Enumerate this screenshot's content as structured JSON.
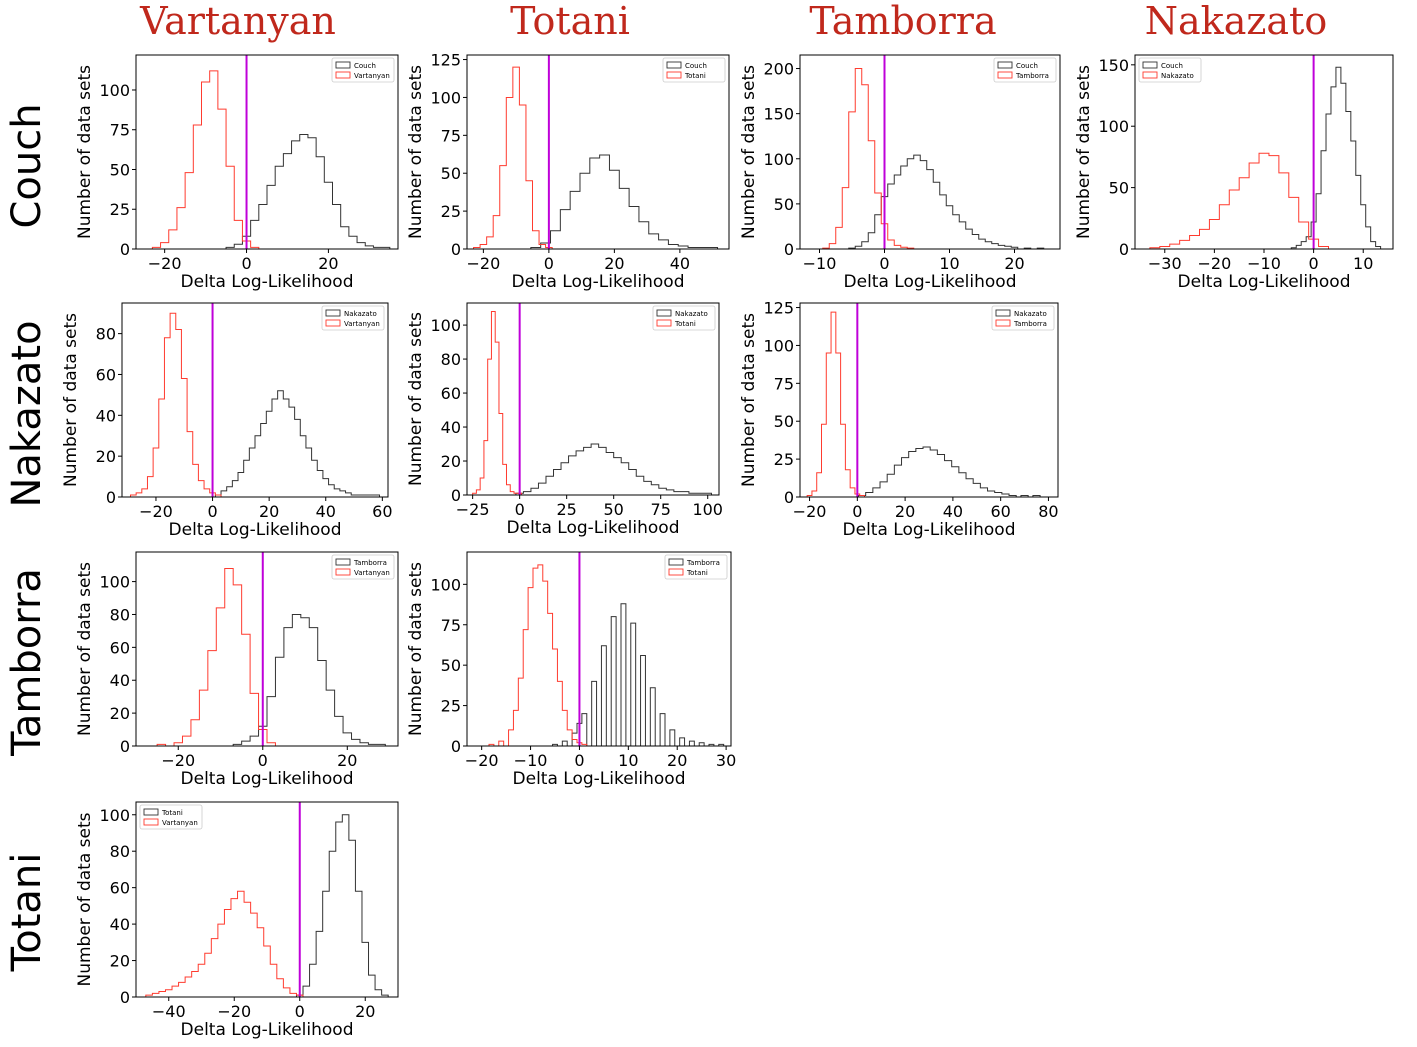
{
  "column_titles": [
    "Vartanyan",
    "Totani",
    "Tamborra",
    "Nakazato"
  ],
  "row_titles": [
    "Couch",
    "Nakazato",
    "Tamborra",
    "Totani"
  ],
  "colors": {
    "reference_series": "#333333",
    "compared_series": "#ff3b2f",
    "zero_line": "#bf00d9",
    "title_accent": "#c0281c"
  },
  "chart_data": [
    {
      "type": "histogram",
      "row": "Couch",
      "column": "Vartanyan",
      "xlabel": "Delta Log-Likelihood",
      "ylabel": "Number of data sets",
      "xlim": [
        -27,
        37
      ],
      "ylim": [
        0,
        122
      ],
      "xticks": [
        -20,
        0,
        20
      ],
      "yticks": [
        0,
        25,
        50,
        75,
        100
      ],
      "vline_x": 0,
      "legend_position": "upper right",
      "series": [
        {
          "name": "Couch",
          "color": "#333333",
          "x": [
            -4,
            -2,
            0,
            2,
            4,
            6,
            8,
            10,
            12,
            14,
            16,
            18,
            20,
            22,
            24,
            26,
            28,
            30,
            32,
            34
          ],
          "y": [
            1,
            3,
            8,
            18,
            28,
            40,
            52,
            60,
            68,
            72,
            70,
            58,
            42,
            28,
            14,
            8,
            4,
            2,
            1,
            1
          ]
        },
        {
          "name": "Vartanyan",
          "color": "#ff3b2f",
          "x": [
            -22,
            -20,
            -18,
            -16,
            -14,
            -12,
            -10,
            -8,
            -6,
            -4,
            -2,
            0,
            2
          ],
          "y": [
            1,
            4,
            12,
            26,
            48,
            78,
            105,
            112,
            88,
            52,
            18,
            5,
            1
          ]
        }
      ]
    },
    {
      "type": "histogram",
      "row": "Couch",
      "column": "Totani",
      "xlabel": "Delta Log-Likelihood",
      "ylabel": "Number of data sets",
      "xlim": [
        -25,
        55
      ],
      "ylim": [
        0,
        128
      ],
      "xticks": [
        -20,
        0,
        20,
        40
      ],
      "yticks": [
        0,
        25,
        50,
        75,
        100,
        125
      ],
      "vline_x": 0,
      "legend_position": "upper right",
      "series": [
        {
          "name": "Couch",
          "color": "#333333",
          "x": [
            -4,
            -1,
            2,
            5,
            8,
            11,
            14,
            17,
            20,
            23,
            26,
            29,
            32,
            35,
            38,
            41,
            44,
            47,
            50
          ],
          "y": [
            1,
            4,
            12,
            26,
            38,
            50,
            60,
            62,
            52,
            40,
            28,
            18,
            10,
            6,
            3,
            2,
            1,
            1,
            1
          ]
        },
        {
          "name": "Totani",
          "color": "#ff3b2f",
          "x": [
            -22,
            -20,
            -18,
            -16,
            -14,
            -12,
            -10,
            -8,
            -6,
            -4,
            -2,
            0
          ],
          "y": [
            1,
            3,
            8,
            22,
            55,
            100,
            120,
            95,
            45,
            12,
            3,
            1
          ]
        }
      ]
    },
    {
      "type": "histogram",
      "row": "Couch",
      "column": "Tamborra",
      "xlabel": "Delta Log-Likelihood",
      "ylabel": "Number of data sets",
      "xlim": [
        -13,
        27
      ],
      "ylim": [
        0,
        215
      ],
      "xticks": [
        -10,
        0,
        10,
        20
      ],
      "yticks": [
        0,
        50,
        100,
        150,
        200
      ],
      "vline_x": 0,
      "legend_position": "upper right",
      "series": [
        {
          "name": "Couch",
          "color": "#333333",
          "x": [
            -5,
            -4,
            -3,
            -2,
            -1,
            0,
            1,
            2,
            3,
            4,
            5,
            6,
            7,
            8,
            9,
            10,
            11,
            12,
            13,
            14,
            15,
            16,
            17,
            18,
            19,
            20,
            22,
            24
          ],
          "y": [
            1,
            3,
            8,
            18,
            38,
            58,
            72,
            82,
            92,
            100,
            104,
            98,
            88,
            74,
            60,
            48,
            38,
            30,
            22,
            16,
            11,
            8,
            6,
            4,
            3,
            2,
            1,
            1
          ]
        },
        {
          "name": "Tamborra",
          "color": "#ff3b2f",
          "x": [
            -9,
            -8,
            -7,
            -6,
            -5,
            -4,
            -3,
            -2,
            -1,
            0,
            1,
            2,
            3,
            4
          ],
          "y": [
            1,
            6,
            24,
            68,
            152,
            200,
            182,
            120,
            62,
            28,
            10,
            4,
            2,
            1
          ]
        }
      ]
    },
    {
      "type": "histogram",
      "row": "Couch",
      "column": "Nakazato",
      "xlabel": "Delta Log-Likelihood",
      "ylabel": "Number of data sets",
      "xlim": [
        -36,
        16
      ],
      "ylim": [
        0,
        158
      ],
      "xticks": [
        -30,
        -20,
        -10,
        0,
        10
      ],
      "yticks": [
        0,
        50,
        100,
        150
      ],
      "vline_x": 0,
      "legend_position": "upper left",
      "series": [
        {
          "name": "Couch",
          "color": "#333333",
          "x": [
            -4,
            -3,
            -2,
            -1,
            0,
            1,
            2,
            3,
            4,
            5,
            6,
            7,
            8,
            9,
            10,
            11,
            12,
            13
          ],
          "y": [
            1,
            3,
            6,
            10,
            22,
            45,
            80,
            110,
            132,
            148,
            135,
            112,
            88,
            60,
            36,
            18,
            6,
            2
          ]
        },
        {
          "name": "Nakazato",
          "color": "#ff3b2f",
          "x": [
            -32,
            -30,
            -28,
            -26,
            -24,
            -22,
            -20,
            -18,
            -16,
            -14,
            -12,
            -10,
            -8,
            -6,
            -4,
            -2,
            0,
            2
          ],
          "y": [
            1,
            2,
            4,
            7,
            11,
            16,
            24,
            36,
            48,
            58,
            70,
            78,
            76,
            62,
            42,
            22,
            8,
            2
          ]
        }
      ]
    },
    {
      "type": "histogram",
      "row": "Nakazato",
      "column": "Vartanyan",
      "xlabel": "Delta Log-Likelihood",
      "ylabel": "Number of data sets",
      "xlim": [
        -32,
        62
      ],
      "ylim": [
        0,
        95
      ],
      "xticks": [
        -20,
        0,
        20,
        40,
        60
      ],
      "yticks": [
        0,
        20,
        40,
        60,
        80
      ],
      "vline_x": 0,
      "legend_position": "upper right",
      "series": [
        {
          "name": "Nakazato",
          "color": "#333333",
          "x": [
            2,
            4,
            6,
            8,
            10,
            12,
            14,
            16,
            18,
            20,
            22,
            24,
            26,
            28,
            30,
            32,
            34,
            36,
            38,
            40,
            42,
            44,
            46,
            48,
            50,
            52,
            54,
            56,
            58
          ],
          "y": [
            1,
            3,
            5,
            8,
            12,
            18,
            24,
            30,
            36,
            42,
            48,
            52,
            48,
            44,
            38,
            30,
            24,
            18,
            13,
            9,
            6,
            4,
            3,
            2,
            1,
            1,
            1,
            1,
            1
          ]
        },
        {
          "name": "Vartanyan",
          "color": "#ff3b2f",
          "x": [
            -28,
            -26,
            -24,
            -22,
            -20,
            -18,
            -16,
            -14,
            -12,
            -10,
            -8,
            -6,
            -4,
            -2,
            0,
            2
          ],
          "y": [
            1,
            2,
            4,
            10,
            24,
            48,
            78,
            90,
            82,
            58,
            32,
            16,
            8,
            4,
            2,
            1
          ]
        }
      ]
    },
    {
      "type": "histogram",
      "row": "Nakazato",
      "column": "Totani",
      "xlabel": "Delta Log-Likelihood",
      "ylabel": "Number of data sets",
      "xlim": [
        -28,
        106
      ],
      "ylim": [
        0,
        113
      ],
      "xticks": [
        -25,
        0,
        25,
        50,
        75,
        100
      ],
      "yticks": [
        0,
        20,
        40,
        60,
        80,
        100
      ],
      "vline_x": 0,
      "legend_position": "upper right",
      "series": [
        {
          "name": "Nakazato",
          "color": "#333333",
          "x": [
            0,
            4,
            8,
            12,
            16,
            20,
            24,
            28,
            32,
            36,
            40,
            44,
            48,
            52,
            56,
            60,
            64,
            68,
            72,
            76,
            80,
            84,
            88,
            92,
            96,
            100
          ],
          "y": [
            1,
            2,
            4,
            7,
            11,
            15,
            19,
            23,
            26,
            28,
            30,
            28,
            25,
            22,
            19,
            15,
            11,
            8,
            6,
            4,
            3,
            2,
            2,
            1,
            1,
            1
          ]
        },
        {
          "name": "Totani",
          "color": "#ff3b2f",
          "x": [
            -24,
            -22,
            -20,
            -18,
            -16,
            -14,
            -12,
            -10,
            -8,
            -6,
            -4,
            -2,
            0
          ],
          "y": [
            1,
            3,
            10,
            32,
            80,
            108,
            90,
            48,
            18,
            6,
            2,
            1,
            1
          ]
        }
      ]
    },
    {
      "type": "histogram",
      "row": "Nakazato",
      "column": "Tamborra",
      "xlabel": "Delta Log-Likelihood",
      "ylabel": "Number of data sets",
      "xlim": [
        -24,
        84
      ],
      "ylim": [
        0,
        128
      ],
      "xticks": [
        -20,
        0,
        20,
        40,
        60,
        80
      ],
      "yticks": [
        0,
        25,
        50,
        75,
        100,
        125
      ],
      "vline_x": 0,
      "legend_position": "upper right",
      "series": [
        {
          "name": "Nakazato",
          "color": "#333333",
          "x": [
            2,
            5,
            8,
            11,
            14,
            17,
            20,
            23,
            26,
            29,
            32,
            35,
            38,
            41,
            44,
            47,
            50,
            53,
            56,
            59,
            62,
            65,
            70,
            75
          ],
          "y": [
            1,
            3,
            6,
            10,
            15,
            21,
            26,
            30,
            32,
            33,
            31,
            28,
            24,
            20,
            16,
            12,
            9,
            6,
            4,
            3,
            2,
            1,
            1,
            1
          ]
        },
        {
          "name": "Tamborra",
          "color": "#ff3b2f",
          "x": [
            -20,
            -18,
            -16,
            -14,
            -12,
            -10,
            -8,
            -6,
            -4,
            -2,
            0,
            2
          ],
          "y": [
            1,
            4,
            16,
            48,
            95,
            122,
            95,
            48,
            18,
            6,
            2,
            1
          ]
        }
      ]
    },
    {
      "type": "histogram",
      "row": "Tamborra",
      "column": "Vartanyan",
      "xlabel": "Delta Log-Likelihood",
      "ylabel": "Number of data sets",
      "xlim": [
        -30,
        32
      ],
      "ylim": [
        0,
        118
      ],
      "xticks": [
        -20,
        0,
        20
      ],
      "yticks": [
        0,
        20,
        40,
        60,
        80,
        100
      ],
      "vline_x": 0,
      "legend_position": "upper right",
      "series": [
        {
          "name": "Tamborra",
          "color": "#333333",
          "x": [
            -6,
            -4,
            -2,
            0,
            2,
            4,
            6,
            8,
            10,
            12,
            14,
            16,
            18,
            20,
            22,
            24,
            26,
            28
          ],
          "y": [
            1,
            3,
            6,
            12,
            30,
            54,
            72,
            80,
            78,
            72,
            52,
            34,
            18,
            8,
            4,
            2,
            1,
            1
          ]
        },
        {
          "name": "Vartanyan",
          "color": "#ff3b2f",
          "x": [
            -24,
            -20,
            -18,
            -16,
            -14,
            -12,
            -10,
            -8,
            -6,
            -4,
            -2,
            0,
            2
          ],
          "y": [
            1,
            2,
            6,
            16,
            34,
            58,
            84,
            108,
            98,
            68,
            32,
            10,
            2
          ]
        }
      ]
    },
    {
      "type": "histogram",
      "row": "Tamborra",
      "column": "Totani",
      "xlabel": "Delta Log-Likelihood",
      "ylabel": "Number of data sets",
      "xlim": [
        -23,
        31
      ],
      "ylim": [
        0,
        120
      ],
      "xticks": [
        -20,
        -10,
        0,
        10,
        20,
        30
      ],
      "yticks": [
        0,
        25,
        50,
        75,
        100
      ],
      "vline_x": 0,
      "legend_position": "upper right",
      "series": [
        {
          "name": "Tamborra",
          "color": "#333333",
          "x": [
            -5,
            -3,
            -1,
            0,
            1,
            3,
            5,
            7,
            9,
            11,
            13,
            15,
            17,
            19,
            21,
            23,
            25,
            27,
            29
          ],
          "y": [
            1,
            3,
            8,
            14,
            20,
            40,
            62,
            80,
            88,
            76,
            56,
            36,
            20,
            10,
            5,
            3,
            2,
            1,
            1
          ]
        },
        {
          "name": "Totani",
          "color": "#ff3b2f",
          "x": [
            -18,
            -16,
            -14,
            -13,
            -12,
            -11,
            -10,
            -9,
            -8,
            -7,
            -6,
            -5,
            -4,
            -3,
            -2,
            -1,
            0,
            1
          ],
          "y": [
            1,
            3,
            10,
            22,
            42,
            72,
            98,
            110,
            112,
            102,
            82,
            60,
            40,
            22,
            10,
            4,
            2,
            1
          ]
        }
      ]
    },
    {
      "type": "histogram",
      "row": "Totani",
      "column": "Vartanyan",
      "xlabel": "Delta Log-Likelihood",
      "ylabel": "Number of data sets",
      "xlim": [
        -50,
        30
      ],
      "ylim": [
        0,
        107
      ],
      "xticks": [
        -40,
        -20,
        0,
        20
      ],
      "yticks": [
        0,
        20,
        40,
        60,
        80,
        100
      ],
      "vline_x": 0,
      "legend_position": "upper left",
      "series": [
        {
          "name": "Totani",
          "color": "#333333",
          "x": [
            0,
            2,
            4,
            6,
            8,
            10,
            12,
            14,
            16,
            18,
            20,
            22,
            24,
            26
          ],
          "y": [
            1,
            6,
            18,
            36,
            58,
            80,
            96,
            100,
            86,
            58,
            30,
            12,
            4,
            1
          ]
        },
        {
          "name": "Vartanyan",
          "color": "#ff3b2f",
          "x": [
            -46,
            -44,
            -42,
            -40,
            -38,
            -36,
            -34,
            -32,
            -30,
            -28,
            -26,
            -24,
            -22,
            -20,
            -18,
            -16,
            -14,
            -12,
            -10,
            -8,
            -6,
            -4,
            -2,
            0
          ],
          "y": [
            1,
            2,
            3,
            4,
            6,
            8,
            11,
            14,
            18,
            24,
            32,
            40,
            48,
            54,
            58,
            52,
            46,
            38,
            28,
            18,
            10,
            5,
            2,
            1
          ]
        }
      ]
    }
  ]
}
